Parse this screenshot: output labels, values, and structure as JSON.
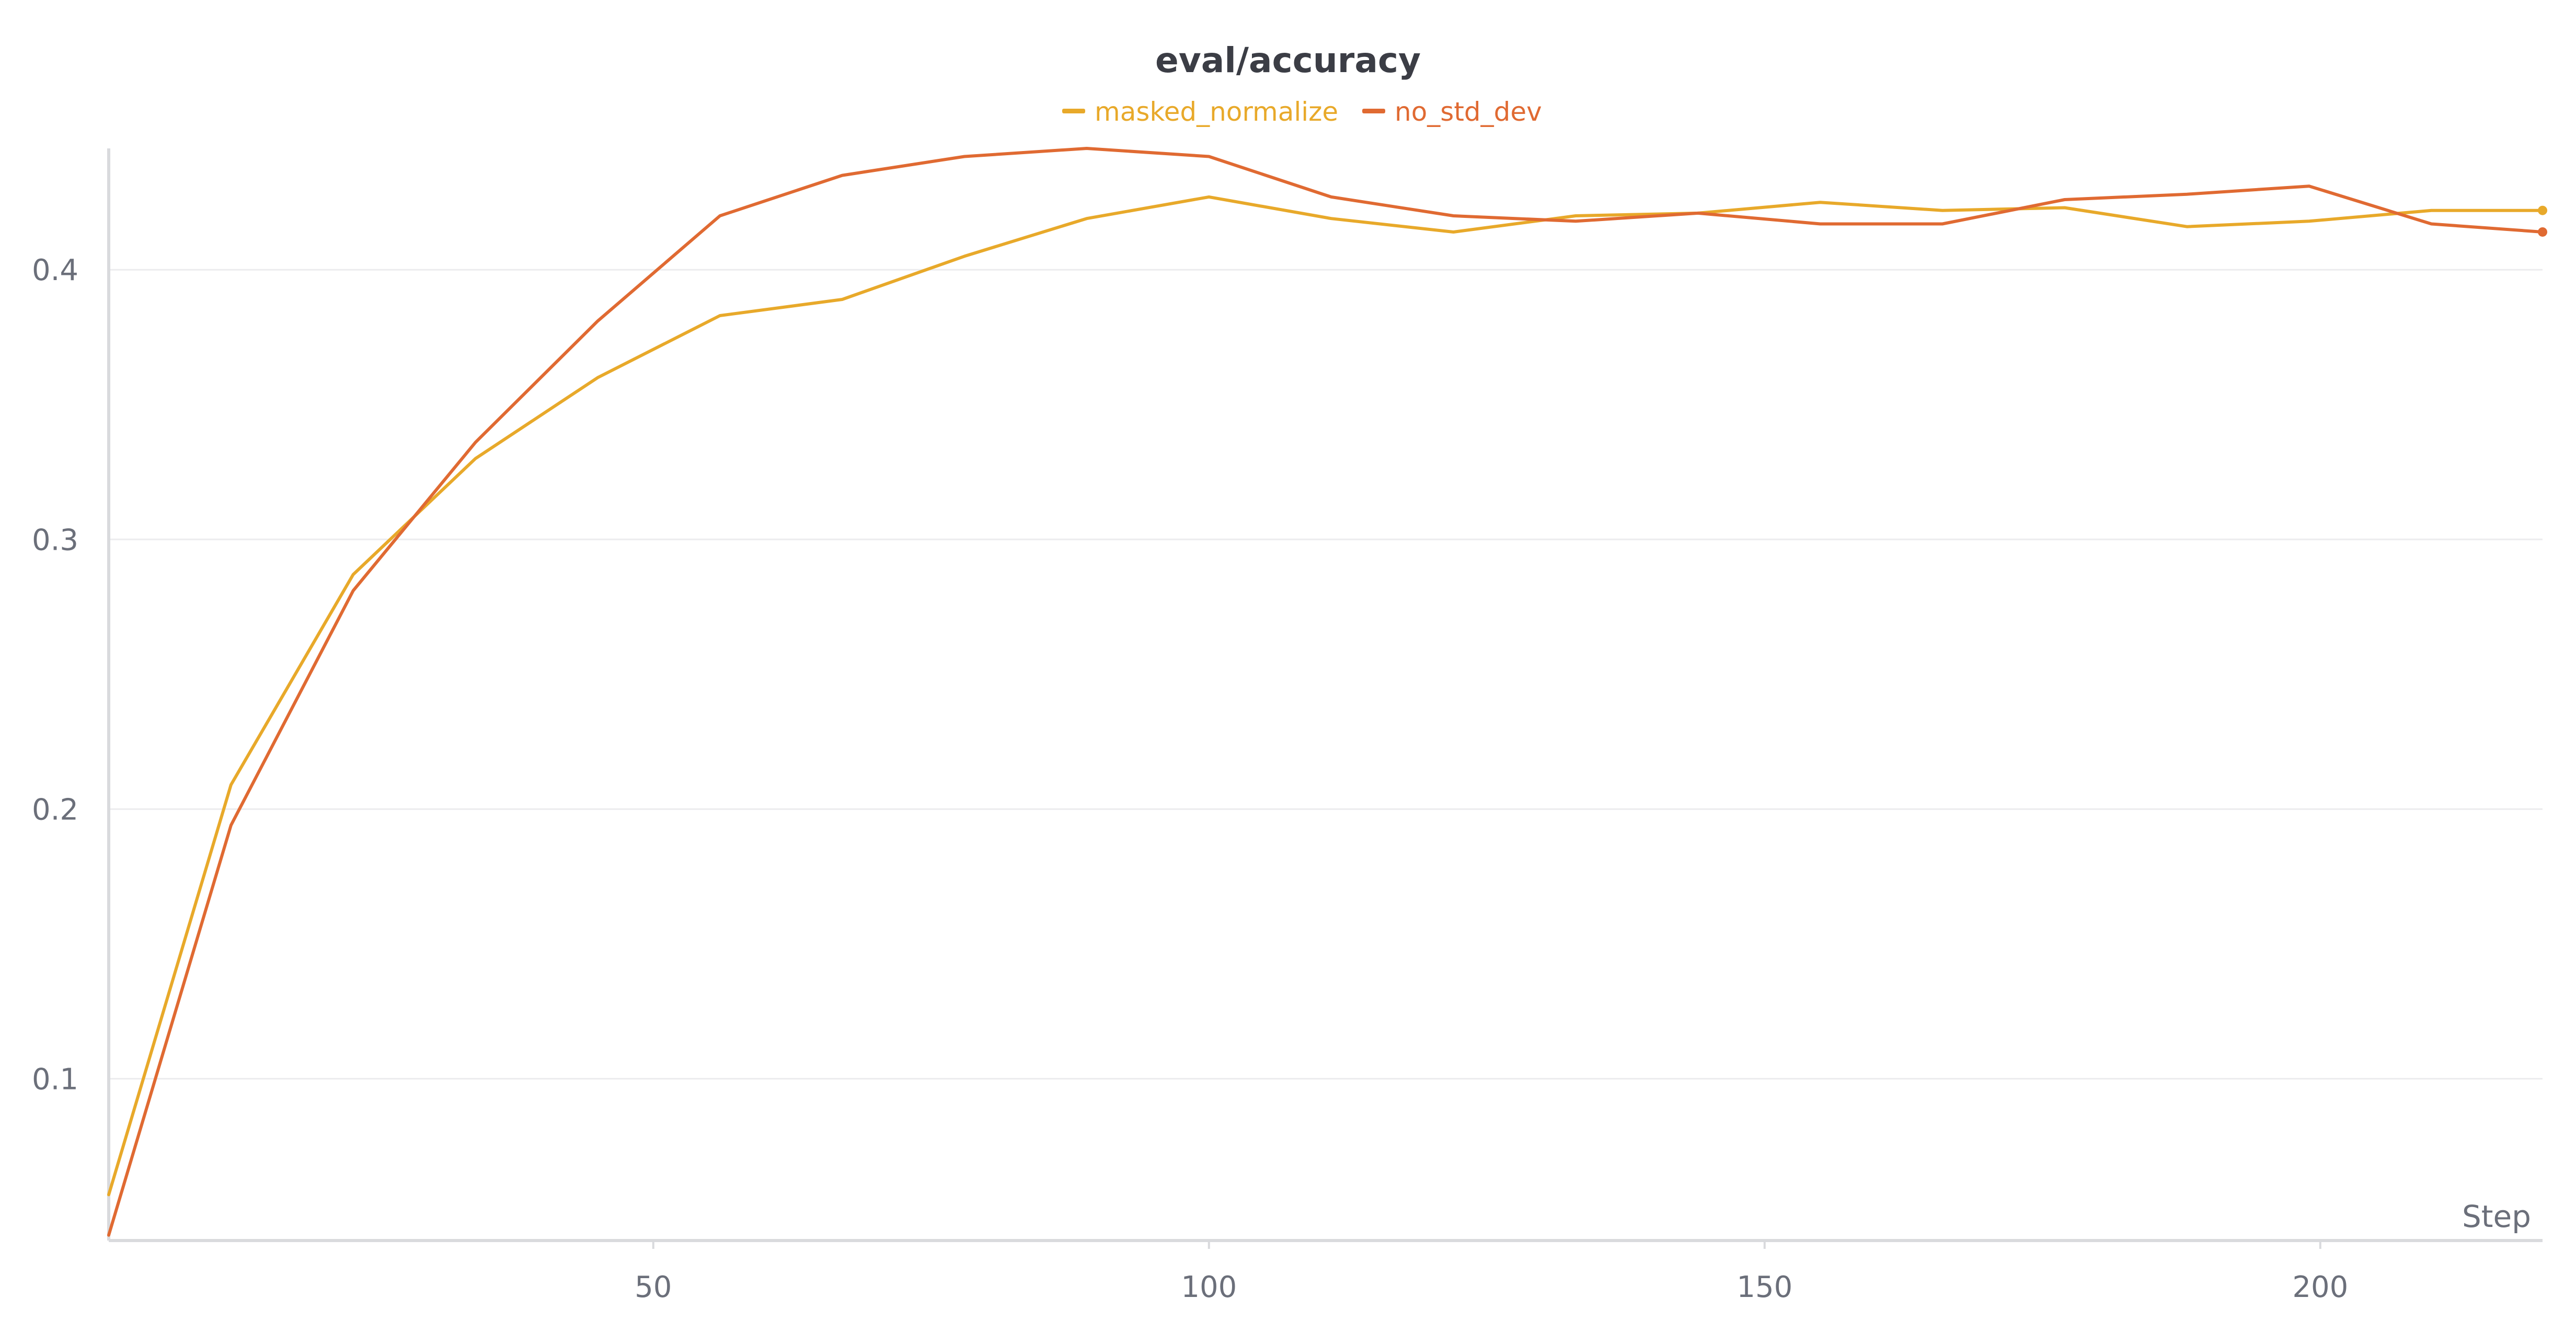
{
  "chart_data": {
    "type": "line",
    "title": "eval/accuracy",
    "xlabel": "Step",
    "ylabel": "",
    "xlim": [
      1,
      220
    ],
    "ylim": [
      0.04,
      0.445
    ],
    "x_ticks": [
      50,
      100,
      150,
      200
    ],
    "y_ticks": [
      0.1,
      0.2,
      0.3,
      0.4
    ],
    "x_tick_labels": [
      "50",
      "100",
      "150",
      "200"
    ],
    "y_tick_labels": [
      "0.1",
      "0.2",
      "0.3",
      "0.4"
    ],
    "grid": true,
    "legend_position": "top-center",
    "x": [
      1,
      12,
      23,
      34,
      45,
      56,
      67,
      78,
      89,
      100,
      111,
      122,
      133,
      144,
      155,
      166,
      177,
      188,
      199,
      210,
      220
    ],
    "series": [
      {
        "name": "masked_normalize",
        "color": "#e8a92a",
        "values": [
          0.057,
          0.209,
          0.287,
          0.33,
          0.36,
          0.383,
          0.389,
          0.405,
          0.419,
          0.427,
          0.419,
          0.414,
          0.42,
          0.421,
          0.425,
          0.422,
          0.423,
          0.416,
          0.418,
          0.422,
          0.422
        ]
      },
      {
        "name": "no_std_dev",
        "color": "#e06a32",
        "values": [
          0.042,
          0.194,
          0.281,
          0.336,
          0.381,
          0.42,
          0.435,
          0.442,
          0.445,
          0.442,
          0.427,
          0.42,
          0.418,
          0.421,
          0.417,
          0.417,
          0.426,
          0.428,
          0.431,
          0.417,
          0.414
        ]
      }
    ]
  }
}
